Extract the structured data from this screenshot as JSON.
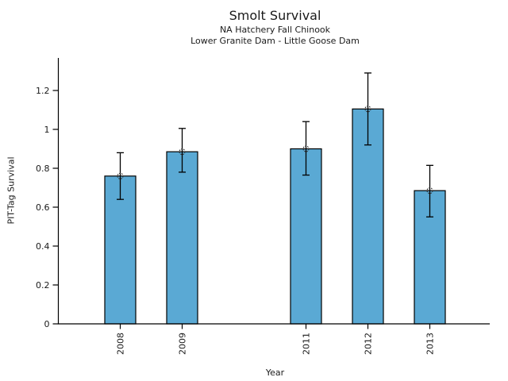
{
  "chart_data": {
    "type": "bar",
    "title": "Smolt Survival",
    "subtitle_lines": [
      "NA Hatchery Fall Chinook",
      "Lower Granite Dam - Little Goose Dam"
    ],
    "xlabel": "Year",
    "ylabel": "PIT-Tag Survival",
    "categories": [
      2008,
      2009,
      2011,
      2012,
      2013
    ],
    "values": [
      0.76,
      0.885,
      0.9,
      1.105,
      0.685
    ],
    "error_low": [
      0.64,
      0.78,
      0.765,
      0.92,
      0.55
    ],
    "error_high": [
      0.88,
      1.005,
      1.04,
      1.29,
      0.815
    ],
    "y_tick_labels": [
      "0",
      "0.2",
      "0.4",
      "0.6",
      "0.8",
      "1",
      "1.2"
    ],
    "y_tick_values": [
      0,
      0.2,
      0.4,
      0.6,
      0.8,
      1.0,
      1.2
    ],
    "ylim": [
      0,
      1.37
    ],
    "x_note": "numeric year axis, 2010 absent leaving a gap",
    "bar_color": "#5AA9D4",
    "bar_edge_color": "#000000",
    "errorbar_color": "#000000",
    "marker": "open-circle",
    "grid": false,
    "legend": "none"
  }
}
